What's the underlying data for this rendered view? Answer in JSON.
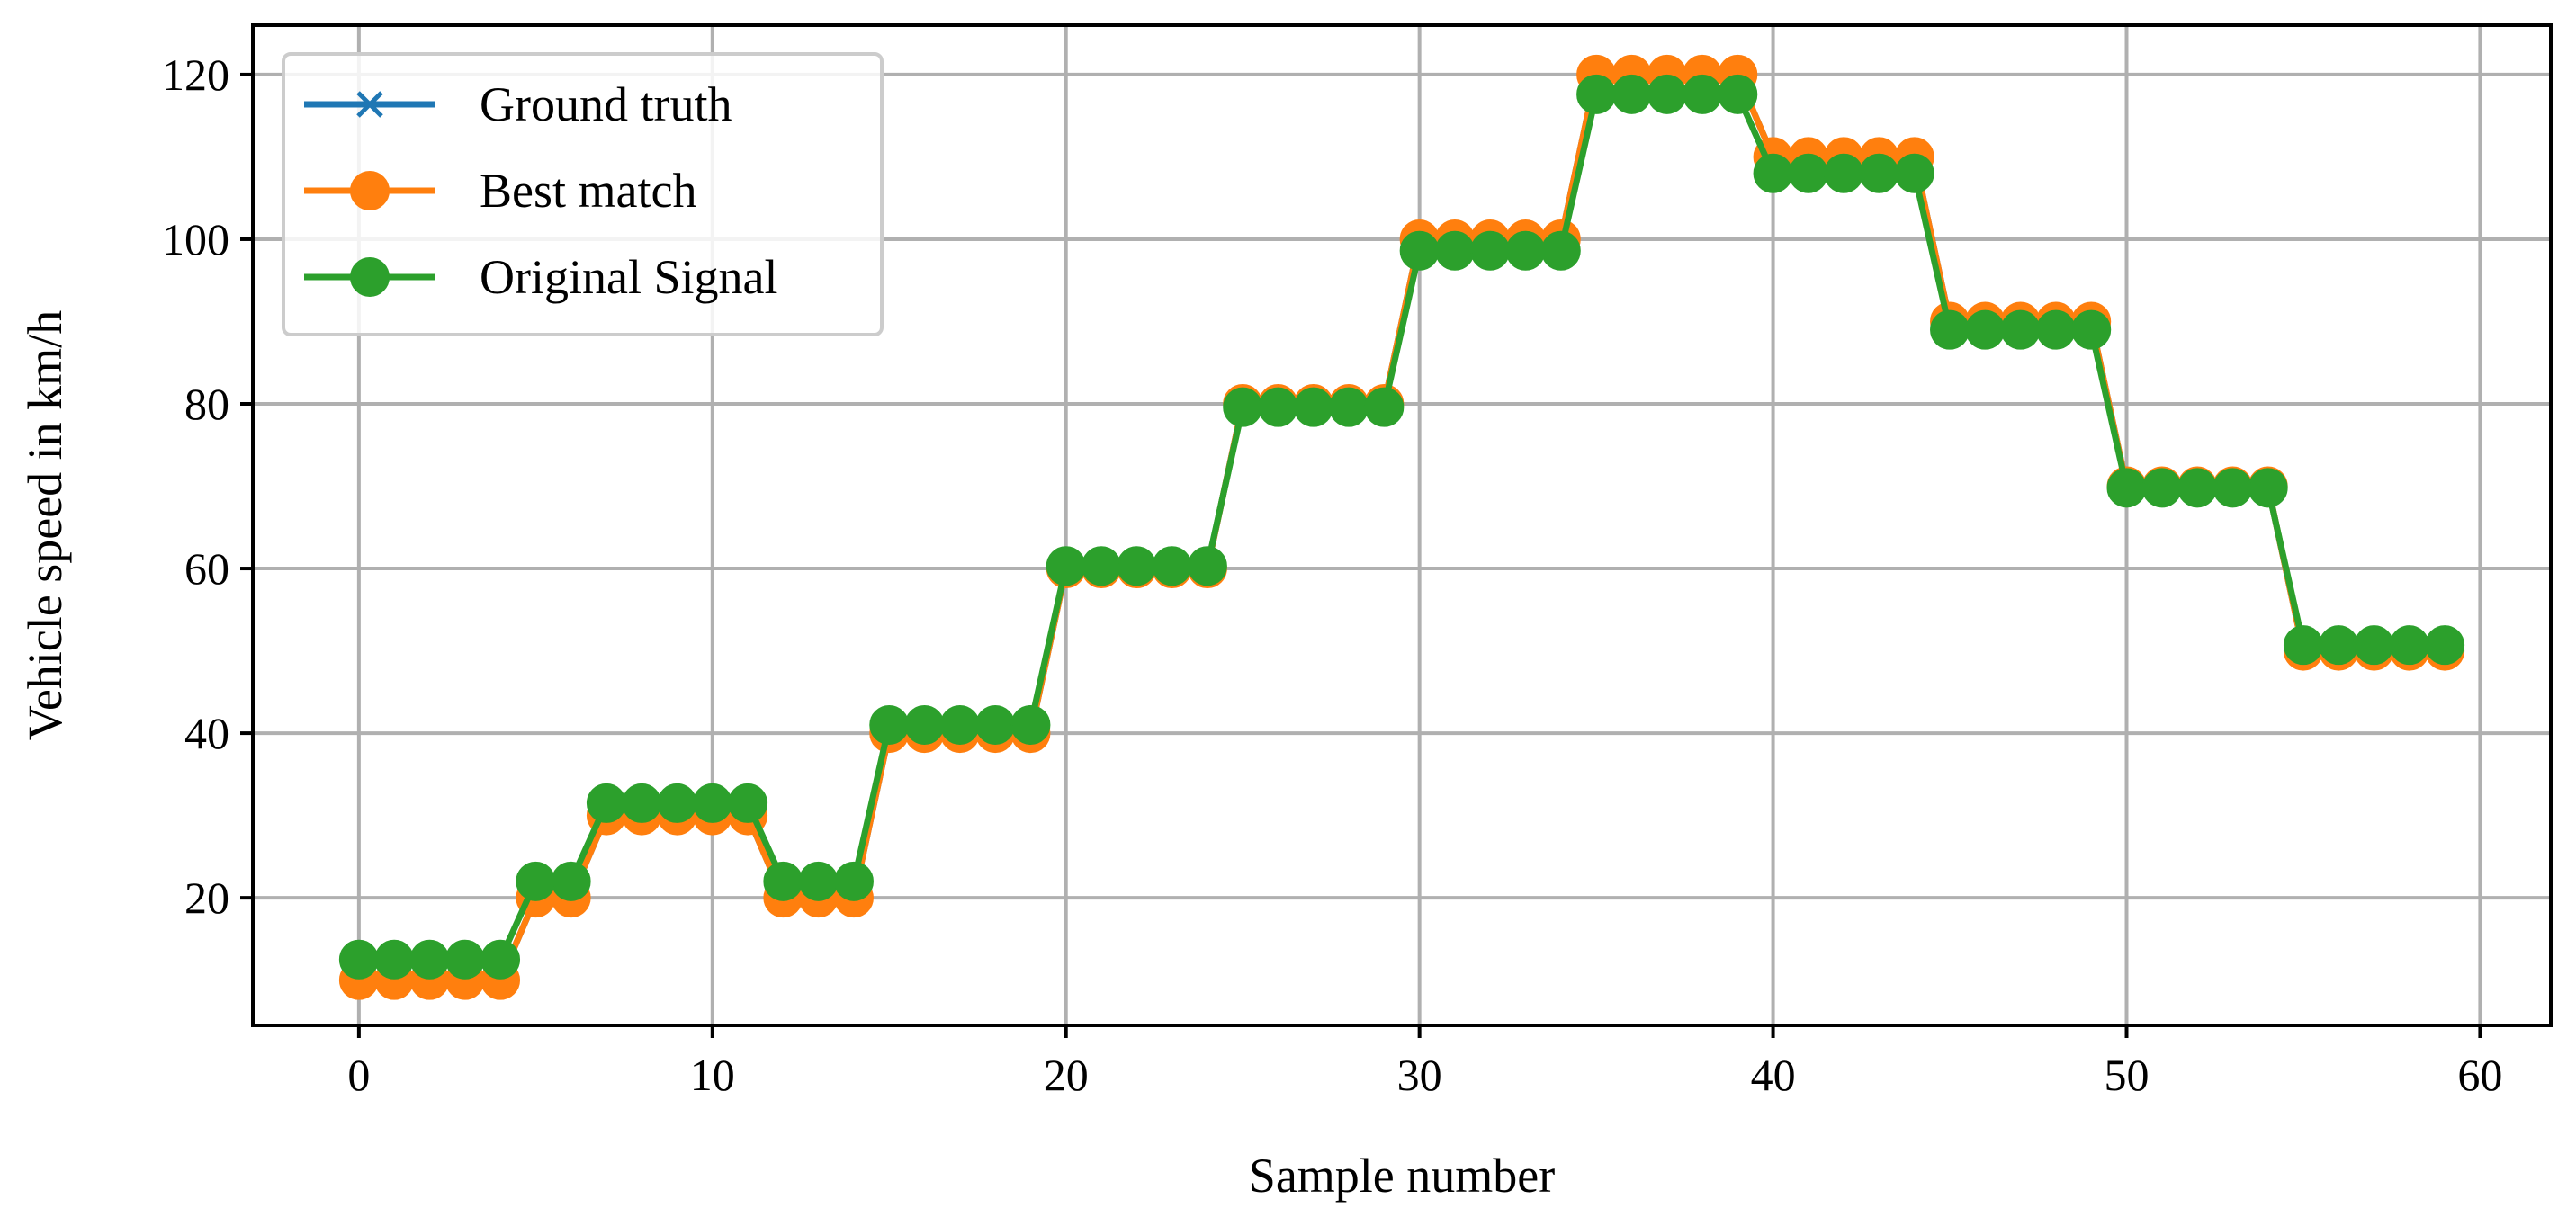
{
  "chart_data": {
    "type": "line",
    "title": "",
    "xlabel": "Sample number",
    "ylabel": "Vehicle speed in km/h",
    "xlim": [
      -3,
      62
    ],
    "ylim": [
      4.5,
      126
    ],
    "xticks": [
      0,
      10,
      20,
      30,
      40,
      50,
      60
    ],
    "yticks": [
      20,
      40,
      60,
      80,
      100,
      120
    ],
    "grid": true,
    "legend_position": "top-left",
    "x": [
      0,
      1,
      2,
      3,
      4,
      5,
      6,
      7,
      8,
      9,
      10,
      11,
      12,
      13,
      14,
      15,
      16,
      17,
      18,
      19,
      20,
      21,
      22,
      23,
      24,
      25,
      26,
      27,
      28,
      29,
      30,
      31,
      32,
      33,
      34,
      35,
      36,
      37,
      38,
      39,
      40,
      41,
      42,
      43,
      44,
      45,
      46,
      47,
      48,
      49,
      50,
      51,
      52,
      53,
      54,
      55,
      56,
      57,
      58,
      59
    ],
    "series": [
      {
        "name": "Ground truth",
        "color": "#1f77b4",
        "marker": "x",
        "values": [
          10,
          10,
          10,
          10,
          10,
          20,
          20,
          30,
          30,
          30,
          30,
          30,
          20,
          20,
          20,
          40,
          40,
          40,
          40,
          40,
          60,
          60,
          60,
          60,
          60,
          80,
          80,
          80,
          80,
          80,
          100,
          100,
          100,
          100,
          100,
          120,
          120,
          120,
          120,
          120,
          110,
          110,
          110,
          110,
          110,
          90,
          90,
          90,
          90,
          90,
          70,
          70,
          70,
          70,
          70,
          50,
          50,
          50,
          50,
          50
        ]
      },
      {
        "name": "Best match",
        "color": "#ff7f0e",
        "marker": "circle",
        "values": [
          10,
          10,
          10,
          10,
          10,
          20,
          20,
          30,
          30,
          30,
          30,
          30,
          20,
          20,
          20,
          40,
          40,
          40,
          40,
          40,
          60,
          60,
          60,
          60,
          60,
          80,
          80,
          80,
          80,
          80,
          100,
          100,
          100,
          100,
          100,
          120,
          120,
          120,
          120,
          120,
          110,
          110,
          110,
          110,
          110,
          90,
          90,
          90,
          90,
          90,
          70,
          70,
          70,
          70,
          70,
          50,
          50,
          50,
          50,
          50
        ]
      },
      {
        "name": "Original Signal",
        "color": "#2ca02c",
        "marker": "circle",
        "values": [
          12.5,
          12.5,
          12.5,
          12.5,
          12.5,
          22,
          22,
          31.5,
          31.5,
          31.5,
          31.5,
          31.5,
          22,
          22,
          22,
          41,
          41,
          41,
          41,
          41,
          60.3,
          60.3,
          60.3,
          60.3,
          60.3,
          79.6,
          79.6,
          79.6,
          79.6,
          79.6,
          98.6,
          98.6,
          98.6,
          98.6,
          98.6,
          117.6,
          117.6,
          117.6,
          117.6,
          117.6,
          108,
          108,
          108,
          108,
          108,
          89,
          89,
          89,
          89,
          89,
          69.8,
          69.8,
          69.8,
          69.8,
          69.8,
          50.7,
          50.7,
          50.7,
          50.7,
          50.7
        ]
      }
    ]
  }
}
